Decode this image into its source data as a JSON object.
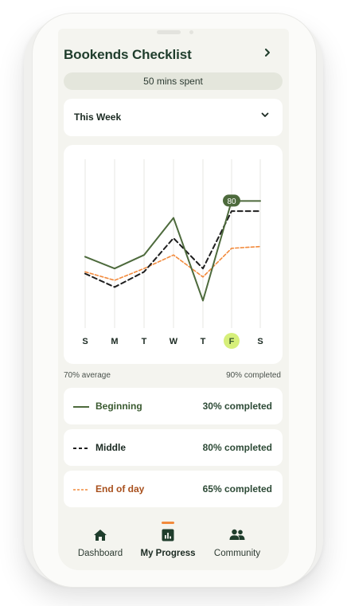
{
  "header": {
    "title": "Bookends Checklist",
    "chevron": "chevron-right-icon"
  },
  "time_spent": "50 mins spent",
  "period": {
    "selected": "This Week",
    "icon": "chevron-down-icon"
  },
  "chart_data": {
    "type": "line",
    "categories": [
      "S",
      "M",
      "T",
      "W",
      "T",
      "F",
      "S"
    ],
    "highlight_category_index": 5,
    "highlight_point_label": "80",
    "ylim": [
      0,
      100
    ],
    "grid": "vertical",
    "series": [
      {
        "name": "Beginning",
        "color": "#4d6a3c",
        "style": "solid",
        "values": [
          47,
          40,
          48,
          70,
          21,
          80,
          80
        ]
      },
      {
        "name": "Middle",
        "color": "#1e1e1e",
        "style": "dashed",
        "values": [
          37,
          29,
          38,
          58,
          40,
          74,
          74
        ]
      },
      {
        "name": "End of day",
        "color": "#f28a3c",
        "style": "dashed",
        "values": [
          38,
          33,
          40,
          48,
          35,
          52,
          53
        ]
      }
    ]
  },
  "summary": {
    "average": "70% average",
    "completed": "90% completed"
  },
  "legend": [
    {
      "name": "Beginning",
      "completed": "30% completed"
    },
    {
      "name": "Middle",
      "completed": "80% completed"
    },
    {
      "name": "End of day",
      "completed": "65% completed"
    }
  ],
  "nav": {
    "items": [
      {
        "label": "Dashboard",
        "icon": "home-icon",
        "active": false
      },
      {
        "label": "My Progress",
        "icon": "bar-chart-icon",
        "active": true
      },
      {
        "label": "Community",
        "icon": "people-icon",
        "active": false
      }
    ]
  },
  "colors": {
    "brand_green": "#1f3d2c",
    "accent_orange": "#f28a3c",
    "highlight_lime": "#d6ef7a"
  }
}
